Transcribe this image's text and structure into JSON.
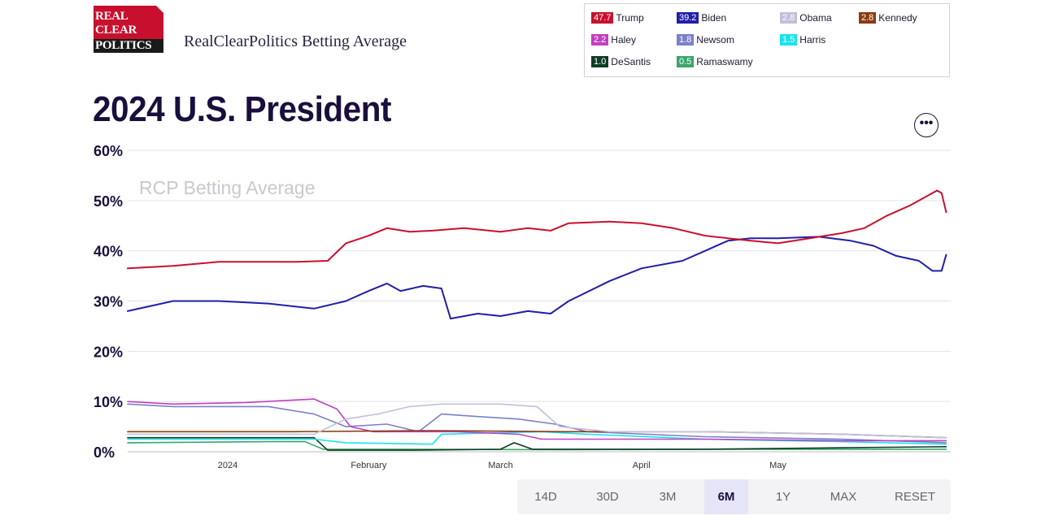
{
  "header": {
    "logo_lines": [
      "REAL",
      "CLEAR",
      "POLITICS"
    ],
    "site_title": "RealClearPolitics Betting Average",
    "page_title": "2024 U.S. President",
    "more_icon": "more-horizontal-icon"
  },
  "legend": [
    {
      "name": "Trump",
      "value": "47.7",
      "color": "#c8102e"
    },
    {
      "name": "Biden",
      "value": "39.2",
      "color": "#1f1fa8"
    },
    {
      "name": "Obama",
      "value": "2.8",
      "color": "#c0c0dc"
    },
    {
      "name": "Kennedy",
      "value": "2.8",
      "color": "#8b3a0f"
    },
    {
      "name": "Haley",
      "value": "2.2",
      "color": "#c040c0"
    },
    {
      "name": "Newsom",
      "value": "1.8",
      "color": "#7b80c8"
    },
    {
      "name": "Harris",
      "value": "1.5",
      "color": "#19e3ef"
    },
    {
      "name": "DeSantis",
      "value": "1.0",
      "color": "#0d3d24"
    },
    {
      "name": "Ramaswamy",
      "value": "0.5",
      "color": "#3aa66a"
    }
  ],
  "range_buttons": [
    "14D",
    "30D",
    "3M",
    "6M",
    "1Y",
    "MAX",
    "RESET"
  ],
  "active_range": "6M",
  "chart_data": {
    "type": "line",
    "watermark": "RCP Betting Average",
    "ylim": [
      0,
      60
    ],
    "yticks": [
      "0%",
      "10%",
      "20%",
      "30%",
      "40%",
      "50%",
      "60%"
    ],
    "x_range": [
      "2023-12-10",
      "2024-06-08"
    ],
    "xticks": [
      {
        "label": "2024",
        "date": "2024-01-01"
      },
      {
        "label": "February",
        "date": "2024-02-01"
      },
      {
        "label": "March",
        "date": "2024-03-01"
      },
      {
        "label": "April",
        "date": "2024-04-01"
      },
      {
        "label": "May",
        "date": "2024-05-01"
      }
    ],
    "grid": true,
    "legend_position": "top-right",
    "series": [
      {
        "name": "Trump",
        "color": "#c8102e",
        "points": [
          [
            "2023-12-10",
            36.5
          ],
          [
            "2023-12-20",
            37.0
          ],
          [
            "2023-12-30",
            37.8
          ],
          [
            "2024-01-10",
            37.8
          ],
          [
            "2024-01-16",
            37.8
          ],
          [
            "2024-01-23",
            38.0
          ],
          [
            "2024-01-27",
            41.5
          ],
          [
            "2024-02-01",
            43.0
          ],
          [
            "2024-02-05",
            44.5
          ],
          [
            "2024-02-10",
            43.8
          ],
          [
            "2024-02-15",
            44.0
          ],
          [
            "2024-02-22",
            44.5
          ],
          [
            "2024-03-01",
            43.8
          ],
          [
            "2024-03-07",
            44.5
          ],
          [
            "2024-03-12",
            44.0
          ],
          [
            "2024-03-16",
            45.5
          ],
          [
            "2024-03-25",
            45.8
          ],
          [
            "2024-04-01",
            45.5
          ],
          [
            "2024-04-08",
            44.5
          ],
          [
            "2024-04-15",
            43.0
          ],
          [
            "2024-04-20",
            42.5
          ],
          [
            "2024-04-25",
            42.0
          ],
          [
            "2024-05-01",
            41.5
          ],
          [
            "2024-05-08",
            42.5
          ],
          [
            "2024-05-15",
            43.5
          ],
          [
            "2024-05-20",
            44.5
          ],
          [
            "2024-05-25",
            47.0
          ],
          [
            "2024-05-30",
            49.0
          ],
          [
            "2024-06-02",
            50.5
          ],
          [
            "2024-06-05",
            52.0
          ],
          [
            "2024-06-06",
            51.5
          ],
          [
            "2024-06-07",
            47.7
          ]
        ]
      },
      {
        "name": "Biden",
        "color": "#1f1fa8",
        "points": [
          [
            "2023-12-10",
            28.0
          ],
          [
            "2023-12-20",
            30.0
          ],
          [
            "2023-12-30",
            30.0
          ],
          [
            "2024-01-10",
            29.5
          ],
          [
            "2024-01-20",
            28.5
          ],
          [
            "2024-01-27",
            30.0
          ],
          [
            "2024-02-01",
            32.0
          ],
          [
            "2024-02-05",
            33.5
          ],
          [
            "2024-02-08",
            32.0
          ],
          [
            "2024-02-13",
            33.0
          ],
          [
            "2024-02-17",
            32.5
          ],
          [
            "2024-02-19",
            26.5
          ],
          [
            "2024-02-25",
            27.5
          ],
          [
            "2024-03-01",
            27.0
          ],
          [
            "2024-03-07",
            28.0
          ],
          [
            "2024-03-12",
            27.5
          ],
          [
            "2024-03-16",
            30.0
          ],
          [
            "2024-03-25",
            34.0
          ],
          [
            "2024-04-01",
            36.5
          ],
          [
            "2024-04-10",
            38.0
          ],
          [
            "2024-04-15",
            40.0
          ],
          [
            "2024-04-20",
            42.0
          ],
          [
            "2024-04-25",
            42.5
          ],
          [
            "2024-05-01",
            42.5
          ],
          [
            "2024-05-10",
            42.8
          ],
          [
            "2024-05-17",
            42.0
          ],
          [
            "2024-05-22",
            41.0
          ],
          [
            "2024-05-27",
            39.0
          ],
          [
            "2024-06-01",
            38.0
          ],
          [
            "2024-06-04",
            36.0
          ],
          [
            "2024-06-06",
            36.0
          ],
          [
            "2024-06-07",
            39.2
          ]
        ]
      },
      {
        "name": "Obama",
        "color": "#c0c0dc",
        "points": [
          [
            "2023-12-10",
            3.5
          ],
          [
            "2024-01-20",
            3.5
          ],
          [
            "2024-01-27",
            6.5
          ],
          [
            "2024-02-03",
            7.5
          ],
          [
            "2024-02-10",
            9.0
          ],
          [
            "2024-02-17",
            9.5
          ],
          [
            "2024-03-01",
            9.5
          ],
          [
            "2024-03-09",
            9.0
          ],
          [
            "2024-03-14",
            5.0
          ],
          [
            "2024-03-25",
            4.0
          ],
          [
            "2024-04-15",
            4.0
          ],
          [
            "2024-05-15",
            3.5
          ],
          [
            "2024-06-07",
            2.8
          ]
        ]
      },
      {
        "name": "Kennedy",
        "color": "#8b3a0f",
        "points": [
          [
            "2023-12-10",
            4.0
          ],
          [
            "2024-01-15",
            4.0
          ],
          [
            "2024-02-15",
            4.2
          ],
          [
            "2024-03-15",
            4.0
          ],
          [
            "2024-04-15",
            4.0
          ],
          [
            "2024-05-15",
            3.5
          ],
          [
            "2024-06-07",
            2.8
          ]
        ]
      },
      {
        "name": "Haley",
        "color": "#c040c0",
        "points": [
          [
            "2023-12-10",
            10.0
          ],
          [
            "2023-12-20",
            9.5
          ],
          [
            "2024-01-05",
            9.8
          ],
          [
            "2024-01-20",
            10.5
          ],
          [
            "2024-01-25",
            8.5
          ],
          [
            "2024-01-28",
            5.0
          ],
          [
            "2024-02-02",
            4.0
          ],
          [
            "2024-02-20",
            4.0
          ],
          [
            "2024-03-05",
            3.5
          ],
          [
            "2024-03-10",
            2.5
          ],
          [
            "2024-04-15",
            2.5
          ],
          [
            "2024-05-15",
            2.2
          ],
          [
            "2024-06-07",
            2.2
          ]
        ]
      },
      {
        "name": "Newsom",
        "color": "#7b80c8",
        "points": [
          [
            "2023-12-10",
            9.5
          ],
          [
            "2023-12-20",
            9.0
          ],
          [
            "2024-01-10",
            9.0
          ],
          [
            "2024-01-20",
            7.5
          ],
          [
            "2024-01-27",
            5.0
          ],
          [
            "2024-02-05",
            5.5
          ],
          [
            "2024-02-12",
            4.0
          ],
          [
            "2024-02-17",
            7.5
          ],
          [
            "2024-02-25",
            7.0
          ],
          [
            "2024-03-05",
            6.5
          ],
          [
            "2024-03-13",
            5.5
          ],
          [
            "2024-03-20",
            4.0
          ],
          [
            "2024-04-15",
            3.0
          ],
          [
            "2024-05-15",
            2.5
          ],
          [
            "2024-06-07",
            1.8
          ]
        ]
      },
      {
        "name": "Harris",
        "color": "#19e3ef",
        "points": [
          [
            "2023-12-10",
            2.5
          ],
          [
            "2024-01-20",
            2.5
          ],
          [
            "2024-01-27",
            1.8
          ],
          [
            "2024-02-15",
            1.5
          ],
          [
            "2024-02-17",
            3.5
          ],
          [
            "2024-03-10",
            4.0
          ],
          [
            "2024-03-20",
            3.5
          ],
          [
            "2024-04-15",
            2.5
          ],
          [
            "2024-05-15",
            2.0
          ],
          [
            "2024-06-07",
            1.5
          ]
        ]
      },
      {
        "name": "DeSantis",
        "color": "#0d3d24",
        "points": [
          [
            "2023-12-10",
            2.8
          ],
          [
            "2024-01-20",
            2.8
          ],
          [
            "2024-01-23",
            0.3
          ],
          [
            "2024-02-10",
            0.3
          ],
          [
            "2024-03-01",
            0.5
          ],
          [
            "2024-03-04",
            1.8
          ],
          [
            "2024-03-08",
            0.5
          ],
          [
            "2024-03-15",
            0.5
          ],
          [
            "2024-04-15",
            0.5
          ],
          [
            "2024-05-15",
            0.8
          ],
          [
            "2024-06-07",
            1.0
          ]
        ]
      },
      {
        "name": "Ramaswamy",
        "color": "#3aa66a",
        "points": [
          [
            "2023-12-10",
            1.8
          ],
          [
            "2024-01-10",
            2.0
          ],
          [
            "2024-01-18",
            2.0
          ],
          [
            "2024-01-22",
            0.5
          ],
          [
            "2024-02-10",
            0.5
          ],
          [
            "2024-03-15",
            0.4
          ],
          [
            "2024-04-15",
            0.5
          ],
          [
            "2024-05-15",
            0.5
          ],
          [
            "2024-06-07",
            0.5
          ]
        ]
      }
    ]
  }
}
